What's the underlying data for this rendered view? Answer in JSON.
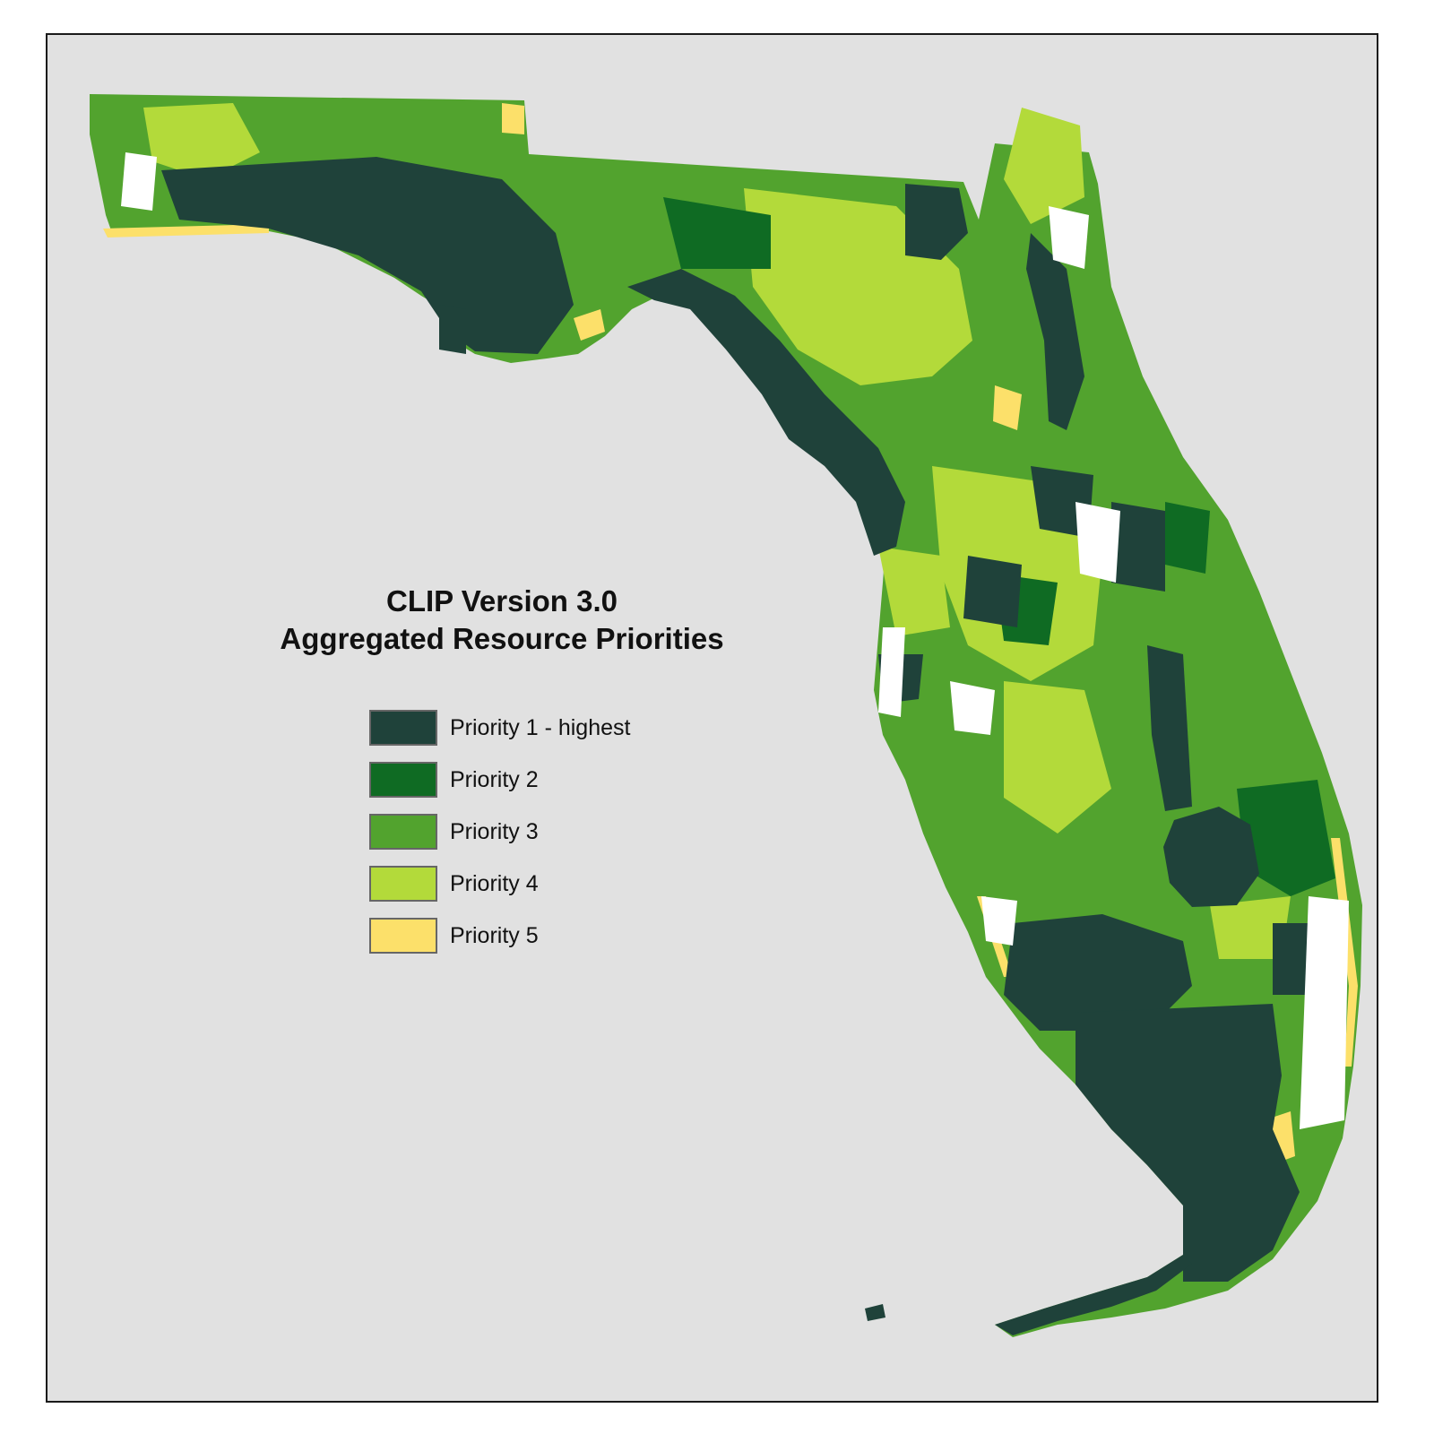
{
  "map": {
    "title_line1": "CLIP Version 3.0",
    "title_line2": "Aggregated Resource Priorities",
    "background_color": "#e1e1e1",
    "urban_color": "#ffffff",
    "legend": [
      {
        "label": "Priority 1 - highest",
        "color": "#1f423a"
      },
      {
        "label": "Priority 2",
        "color": "#0f6b23"
      },
      {
        "label": "Priority 3",
        "color": "#52a32e"
      },
      {
        "label": "Priority 4",
        "color": "#b3da3a"
      },
      {
        "label": "Priority 5",
        "color": "#fce06a"
      }
    ]
  }
}
